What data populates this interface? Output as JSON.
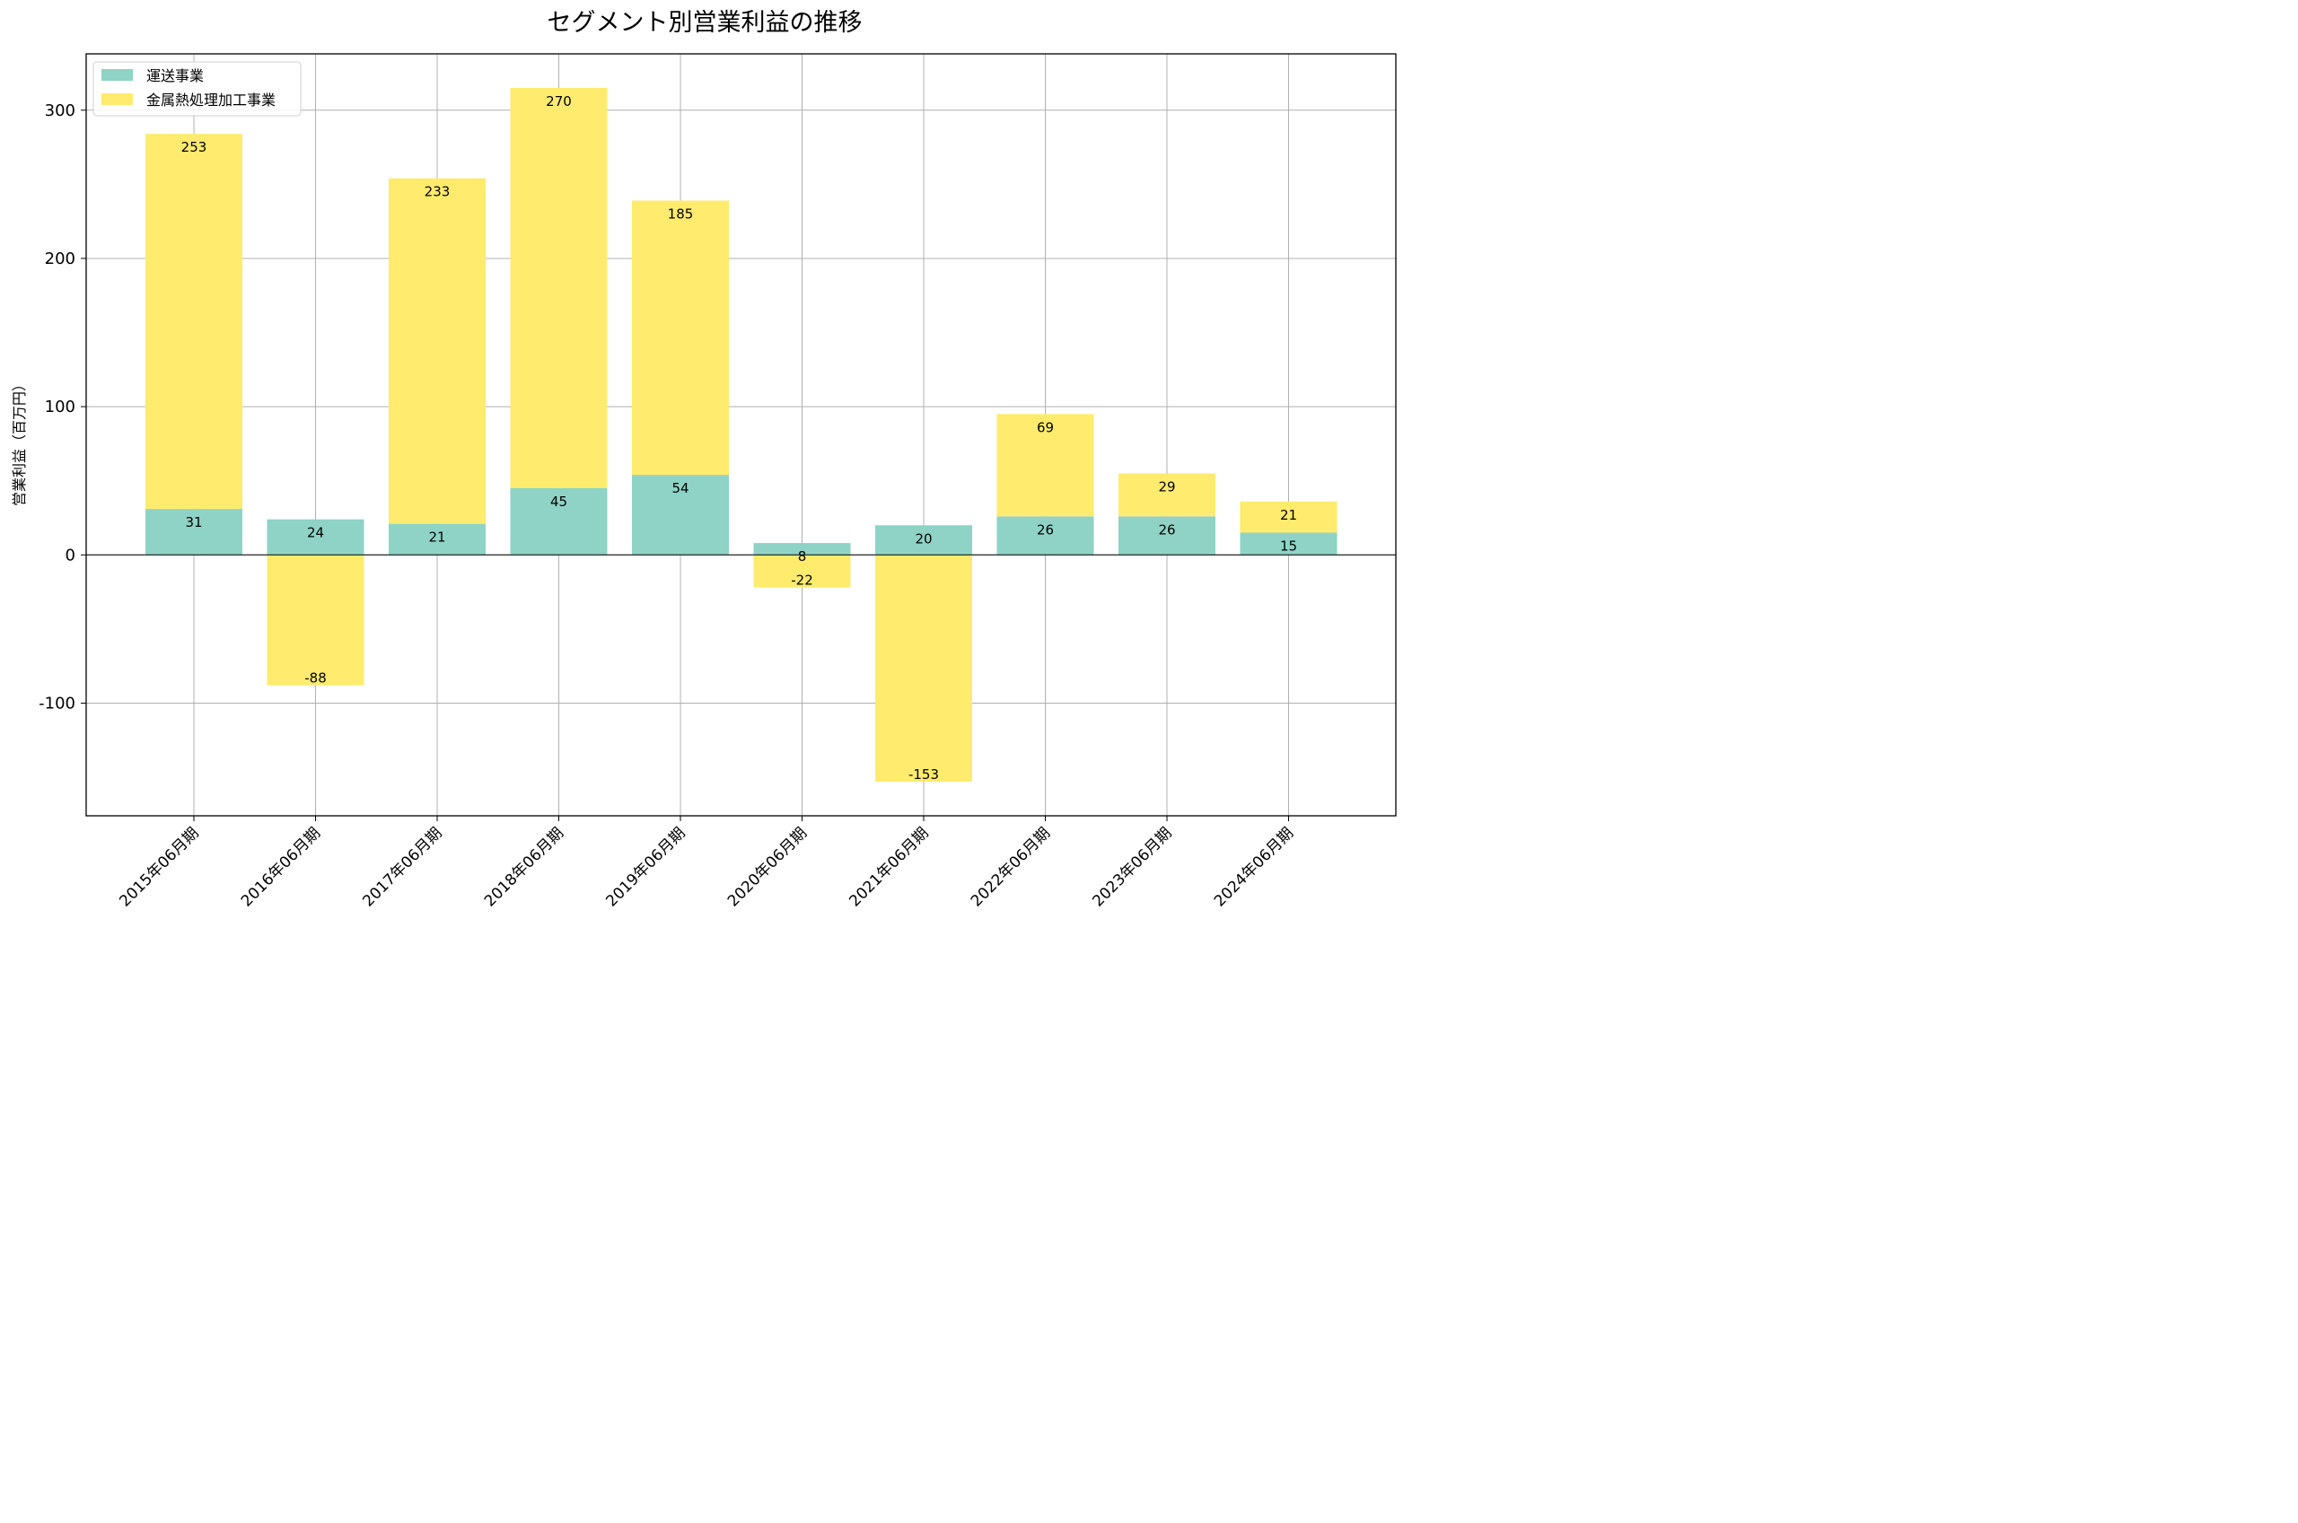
{
  "chart_data": {
    "type": "bar",
    "stacked": true,
    "title": "セグメント別営業利益の推移",
    "xlabel": "",
    "ylabel": "営業利益（百万円）",
    "categories": [
      "2015年06月期",
      "2016年06月期",
      "2017年06月期",
      "2018年06月期",
      "2019年06月期",
      "2020年06月期",
      "2021年06月期",
      "2022年06月期",
      "2023年06月期",
      "2024年06月期"
    ],
    "series": [
      {
        "name": "運送事業",
        "color": "#8ed3c6",
        "values": [
          31,
          24,
          21,
          45,
          54,
          8,
          20,
          26,
          26,
          15
        ]
      },
      {
        "name": "金属熱処理加工事業",
        "color": "#ffeb6d",
        "values": [
          253,
          -88,
          233,
          270,
          185,
          -22,
          -153,
          69,
          29,
          21
        ]
      }
    ],
    "ylim": [
      -176,
      338
    ],
    "yticks": [
      -100,
      0,
      100,
      200,
      300
    ],
    "ytick_labels": [
      "-100",
      "0",
      "100",
      "200",
      "300"
    ],
    "grid": true,
    "legend_position": "top-left"
  }
}
